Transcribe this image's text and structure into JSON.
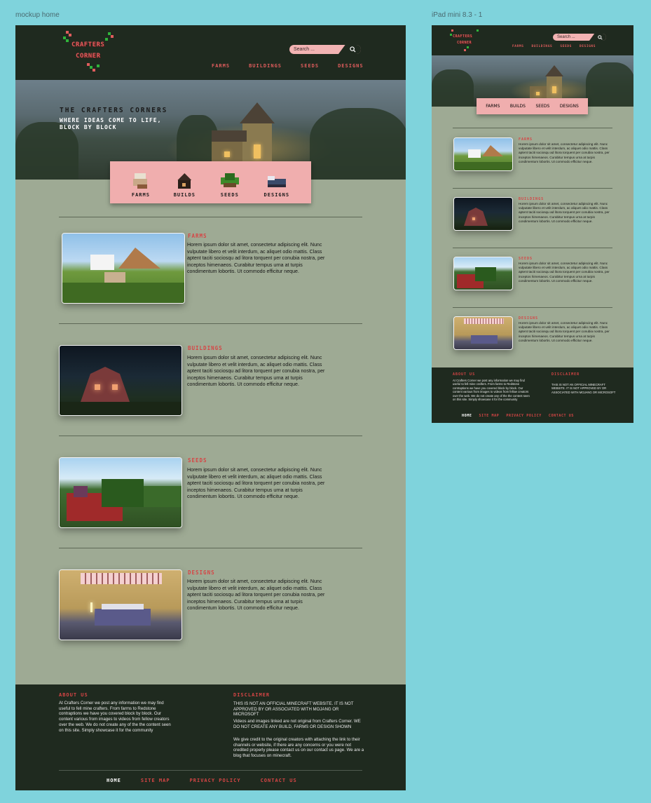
{
  "labels": {
    "desktop_frame": "mockup home",
    "ipad_frame": "iPad mini 8.3 - 1"
  },
  "logo": {
    "line1": "CRAFTERS",
    "line2": "CORNER",
    "line1_small": "CRAFTERS",
    "line2_small": "CORNER"
  },
  "search": {
    "placeholder": "Search ..."
  },
  "nav": [
    "FARMS",
    "BUILDINGS",
    "SEEDS",
    "DESIGNS"
  ],
  "hero": {
    "title": "THE CRAFTERS CORNERS",
    "subtitle_line1": "WHERE IDEAS COME TO LIFE,",
    "subtitle_line2": "BLOCK BY BLOCK"
  },
  "categories": {
    "desktop": [
      "FARMS",
      "BUILDS",
      "SEEDS",
      "DESIGNS"
    ],
    "ipad": [
      "FARMS",
      "BUILDS",
      "SEEDS",
      "DESIGNS"
    ]
  },
  "sections": [
    {
      "title": "FARMS",
      "body": "Horem ipsum dolor sit amet, consectetur adipiscing elit. Nunc vulputate libero et velit interdum, ac aliquet odio mattis. Class aptent taciti sociosqu ad litora torquent per conubia nostra, per inceptos himenaeos. Curabitur tempus urna at turpis condimentum lobortis. Ut commodo efficitur neque."
    },
    {
      "title": "BUILDINGS",
      "body": "Horem ipsum dolor sit amet, consectetur adipiscing elit. Nunc vulputate libero et velit interdum, ac aliquet odio mattis. Class aptent taciti sociosqu ad litora torquent per conubia nostra, per inceptos himenaeos. Curabitur tempus urna at turpis condimentum lobortis. Ut commodo efficitur neque."
    },
    {
      "title": "SEEDS",
      "body": "Horem ipsum dolor sit amet, consectetur adipiscing elit. Nunc vulputate libero et velit interdum, ac aliquet odio mattis. Class aptent taciti sociosqu ad litora torquent per conubia nostra, per inceptos himenaeos. Curabitur tempus urna at turpis condimentum lobortis. Ut commodo efficitur neque."
    },
    {
      "title": "DESIGNS",
      "body": "Horem ipsum dolor sit amet, consectetur adipiscing elit. Nunc vulputate libero et velit interdum, ac aliquet odio mattis. Class aptent taciti sociosqu ad litora torquent per conubia nostra, per inceptos himenaeos. Curabitur tempus urna at turpis condimentum lobortis. Ut commodo efficitur neque."
    }
  ],
  "footer": {
    "about_title": "ABOUT US",
    "about_text": "At Crafters Corner we post any information we may find useful to fell mine crafters. From farms to Redstone contraptions we have you covered block by block. Our content various from images to videos from fellow creators over the web. We do not create any of the the content seen on this site. Simply showcase it for the community",
    "disclaimer_title": "DISCLAIMER",
    "disclaimer_p1": "THIS IS NOT AN OFFICIAL MINECRAFT WEBSITE. IT IS NOT APPROVED BY OR ASSOCIATED WITH MOJANG OR MICROSOFT",
    "disclaimer_p2": "Videos and images linked are not original from Crafters Corner. WE DO NOT CREATE ANY BUILD, FARMS OR DESIGN SHOWN",
    "disclaimer_p3": "We give credit to the original creators with attaching the link to their channels or website, if there are any concerns or you were not credited properly please contact us on our contact us page. We are a blog that focuses on minecraft.",
    "ipad_about_text": "At Crafters Corner we post any information we may find useful to fell mine crafters. From farms to Redstone contraptions we have you covered block by block. Our content various from images to videos from fellow creators over the web. We do not create any of the the content seen on this site. Simply showcase it for the community",
    "ipad_disclaimer": "THIS IS NOT AN OFFICIAL MINECRAFT WEBSITE. IT IS NOT APPROVED BY OR ASSOCIATED WITH MOJANG OR MICROSOFT",
    "links": [
      "HOME",
      "SITE MAP",
      "PRIVACY POLICY",
      "CONTACT US"
    ]
  },
  "colors": {
    "header_bg": "#1f2a1f",
    "page_bg": "#9eaa94",
    "accent_red": "#d64545",
    "pink": "#f0aeae",
    "canvas_bg": "#7fd3dc"
  }
}
